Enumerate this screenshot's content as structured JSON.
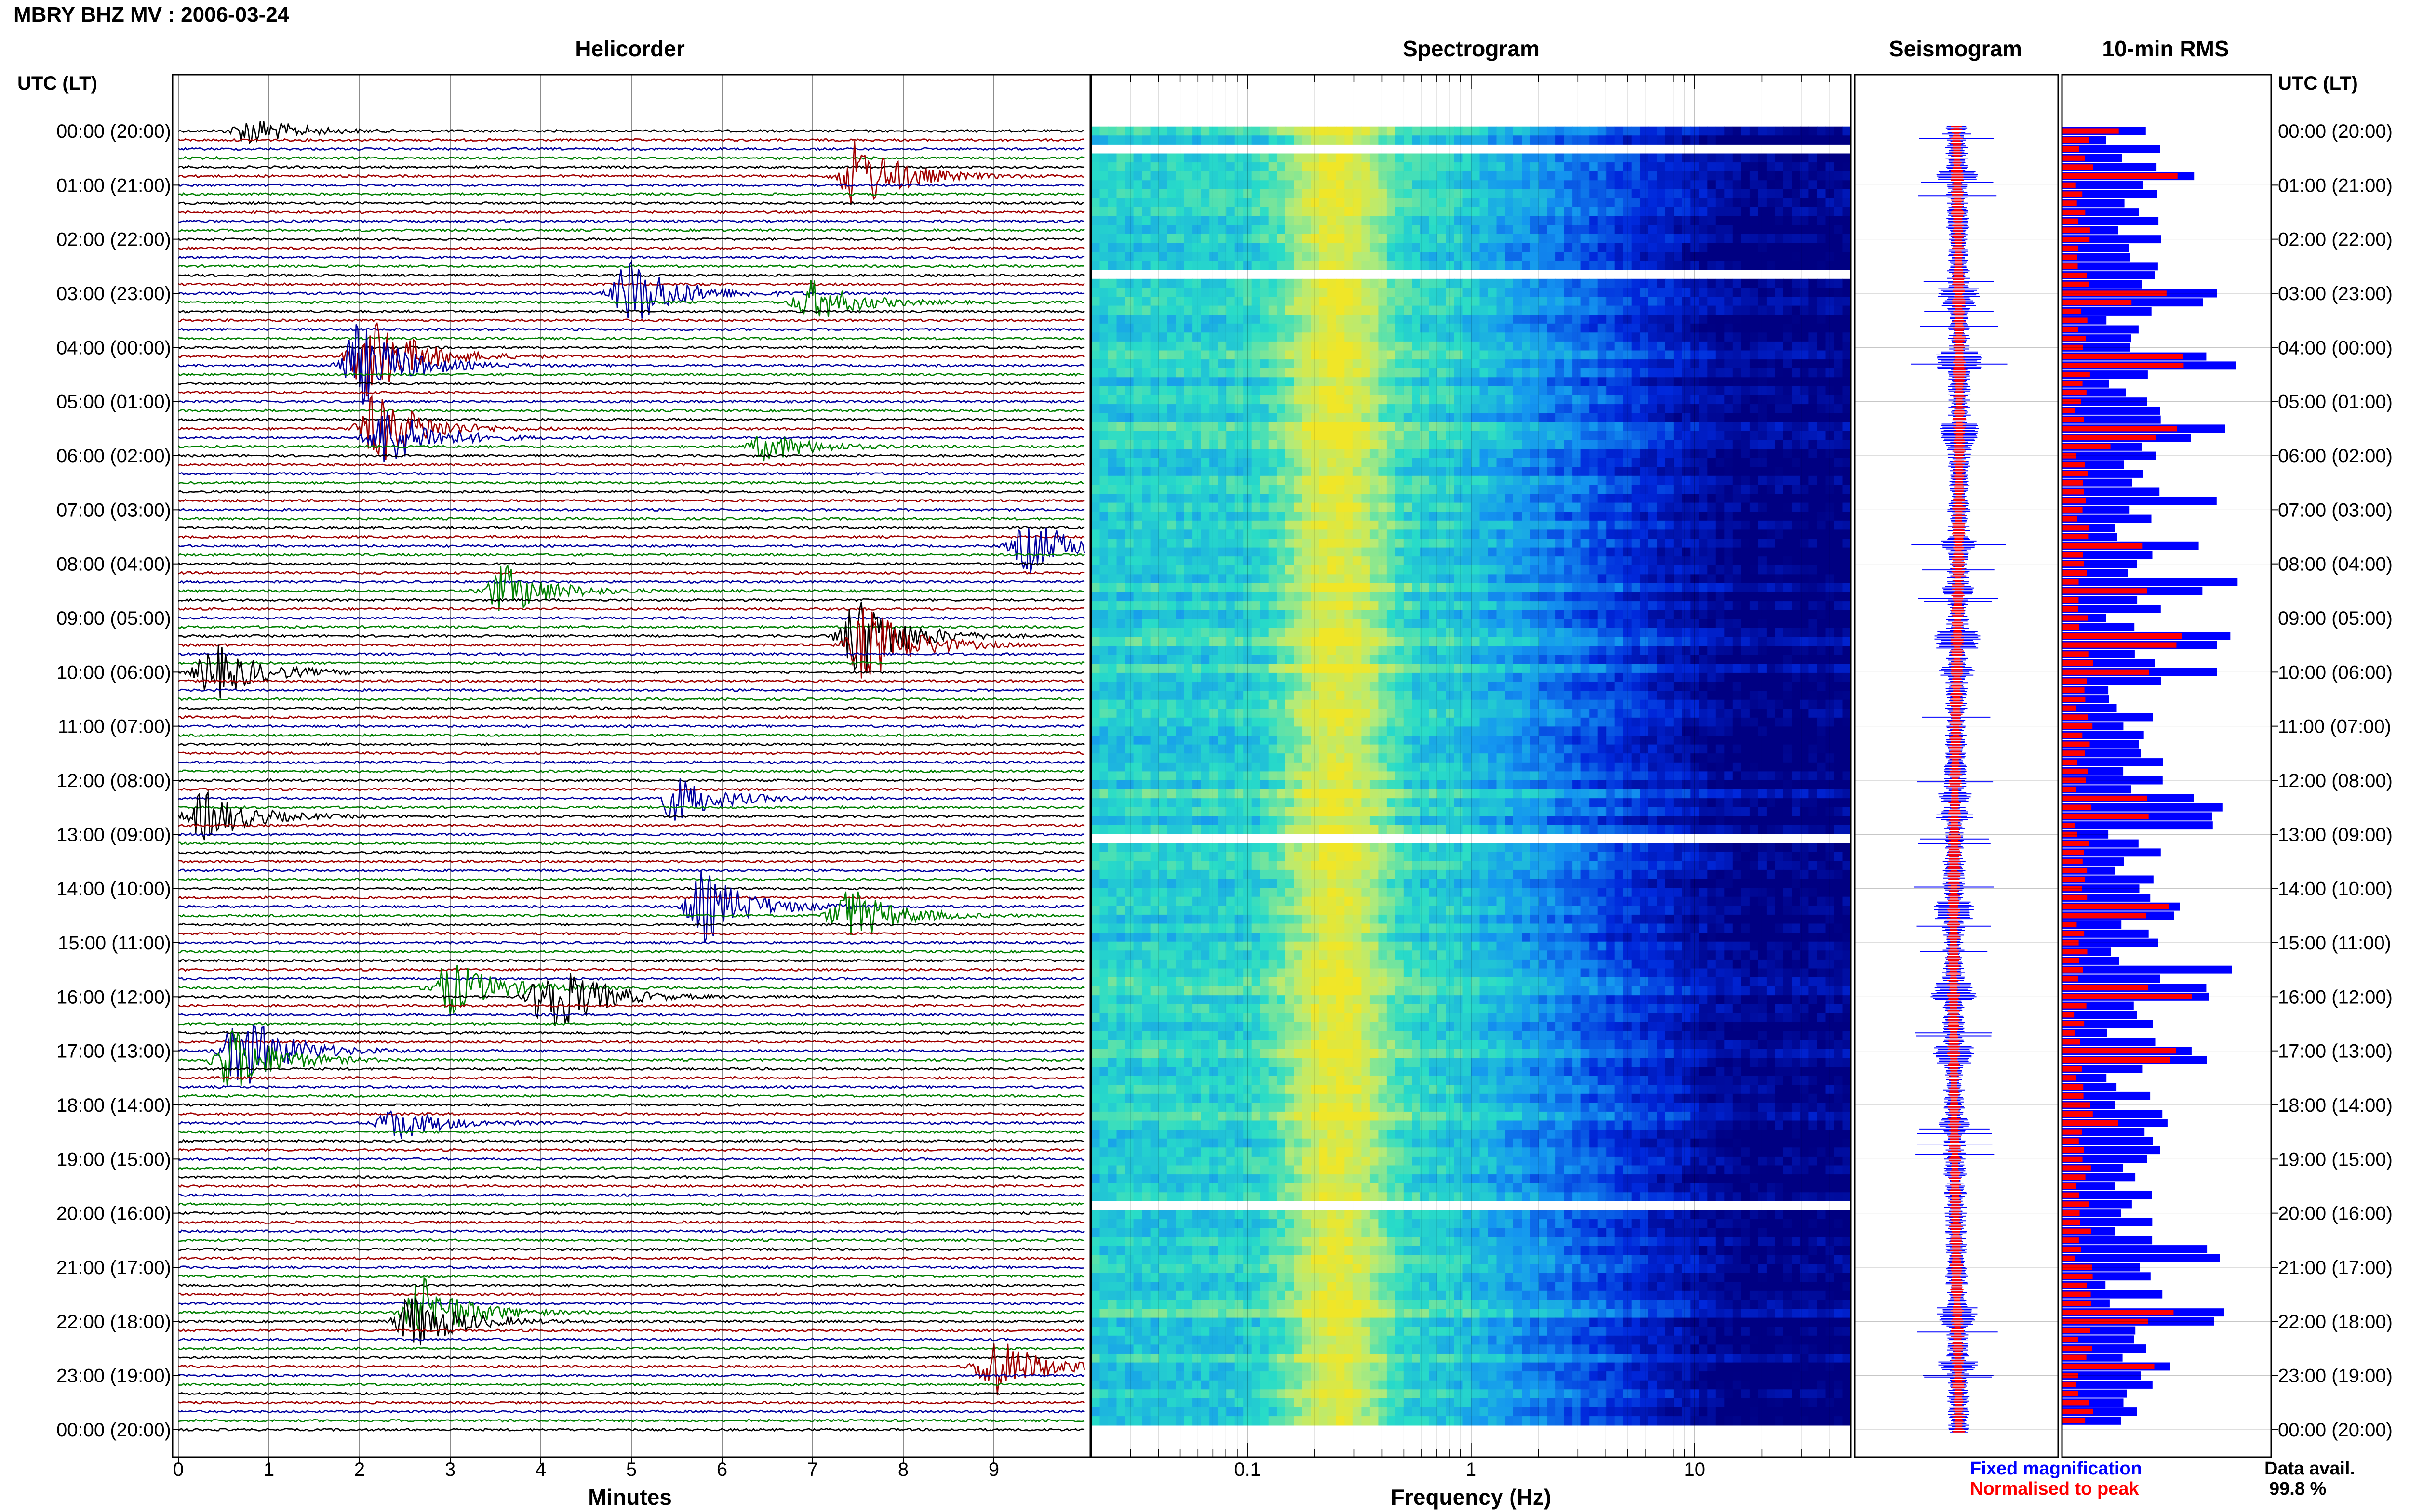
{
  "page_title": "MBRY BHZ MV : 2006-03-24",
  "colors": {
    "trace": [
      "#000000",
      "#a00000",
      "#0000a0",
      "#008000"
    ],
    "fixed": "#0000ff",
    "normalised": "#ff0000",
    "gap": "#ffffff"
  },
  "time_axis_title": "UTC (LT)",
  "legend": {
    "fixed_label": "Fixed magnification",
    "normalised_label": "Normalised to peak"
  },
  "data_avail": {
    "label": "Data avail.",
    "value": "99.8 %"
  },
  "chart_data": [
    {
      "type": "line",
      "title": "Helicorder",
      "xlabel": "Minutes",
      "x_ticks": [
        0,
        1,
        2,
        3,
        4,
        5,
        6,
        7,
        8,
        9
      ],
      "xlim": [
        0,
        10
      ],
      "grid": true,
      "row_minutes": 10,
      "rows_per_day": 145,
      "y_ticks": [
        "00:00 (20:00)",
        "01:00 (21:00)",
        "02:00 (22:00)",
        "03:00 (23:00)",
        "04:00 (00:00)",
        "05:00 (01:00)",
        "06:00 (02:00)",
        "07:00 (03:00)",
        "08:00 (04:00)",
        "09:00 (05:00)",
        "10:00 (06:00)",
        "11:00 (07:00)",
        "12:00 (08:00)",
        "13:00 (09:00)",
        "14:00 (10:00)",
        "15:00 (11:00)",
        "16:00 (12:00)",
        "17:00 (13:00)",
        "18:00 (14:00)",
        "19:00 (15:00)",
        "20:00 (16:00)",
        "21:00 (17:00)",
        "22:00 (18:00)",
        "23:00 (19:00)",
        "00:00 (20:00)"
      ],
      "events": [
        {
          "row": 0,
          "minute": 0.8,
          "amp": 1.0
        },
        {
          "row": 5,
          "minute": 7.5,
          "amp": 2.6
        },
        {
          "row": 18,
          "minute": 5.0,
          "amp": 2.5
        },
        {
          "row": 19,
          "minute": 7.0,
          "amp": 1.5
        },
        {
          "row": 25,
          "minute": 2.1,
          "amp": 3.2
        },
        {
          "row": 26,
          "minute": 2.0,
          "amp": 3.0
        },
        {
          "row": 33,
          "minute": 2.2,
          "amp": 2.6
        },
        {
          "row": 34,
          "minute": 2.3,
          "amp": 2.2
        },
        {
          "row": 35,
          "minute": 6.5,
          "amp": 1.0
        },
        {
          "row": 46,
          "minute": 9.4,
          "amp": 1.9
        },
        {
          "row": 51,
          "minute": 3.6,
          "amp": 1.8
        },
        {
          "row": 56,
          "minute": 7.5,
          "amp": 3.0
        },
        {
          "row": 57,
          "minute": 7.6,
          "amp": 2.8
        },
        {
          "row": 60,
          "minute": 0.4,
          "amp": 2.0
        },
        {
          "row": 74,
          "minute": 5.5,
          "amp": 1.6
        },
        {
          "row": 76,
          "minute": 0.3,
          "amp": 1.8
        },
        {
          "row": 86,
          "minute": 5.8,
          "amp": 2.5
        },
        {
          "row": 87,
          "minute": 7.4,
          "amp": 2.0
        },
        {
          "row": 96,
          "minute": 4.1,
          "amp": 3.0
        },
        {
          "row": 95,
          "minute": 3.0,
          "amp": 2.0
        },
        {
          "row": 102,
          "minute": 0.7,
          "amp": 2.8
        },
        {
          "row": 103,
          "minute": 0.6,
          "amp": 2.4
        },
        {
          "row": 110,
          "minute": 2.4,
          "amp": 1.2
        },
        {
          "row": 131,
          "minute": 2.7,
          "amp": 2.4
        },
        {
          "row": 132,
          "minute": 2.6,
          "amp": 2.0
        },
        {
          "row": 137,
          "minute": 9.0,
          "amp": 2.2
        }
      ]
    },
    {
      "type": "heatmap",
      "title": "Spectrogram",
      "xlabel": "Frequency (Hz)",
      "x_scale": "log",
      "xlim": [
        0.02,
        50
      ],
      "x_tick_labels": [
        0.1,
        1,
        10
      ],
      "gap_rows": [
        2,
        16,
        79,
        120
      ]
    },
    {
      "type": "line",
      "title": "Seismogram",
      "series": [
        {
          "name": "Fixed magnification"
        },
        {
          "name": "Normalised to peak"
        }
      ]
    },
    {
      "type": "bar",
      "title": "10-min RMS",
      "series": [
        {
          "name": "Fixed magnification"
        },
        {
          "name": "Normalised to peak"
        }
      ]
    }
  ]
}
